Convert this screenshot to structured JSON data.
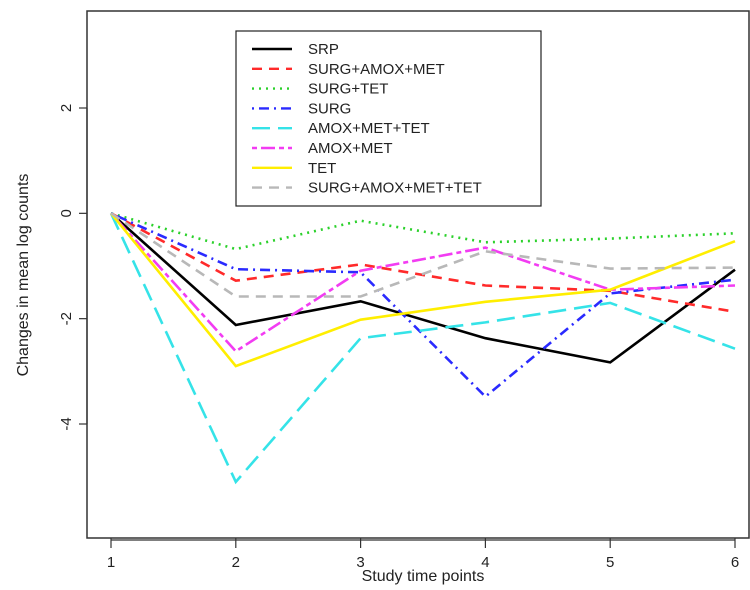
{
  "chart_data": {
    "type": "line",
    "title": "",
    "xlabel": "Study time points",
    "ylabel": "Changes in mean log counts",
    "x": [
      1,
      2,
      3,
      4,
      5,
      6
    ],
    "xlim": [
      1,
      6
    ],
    "ylim": [
      -5.3,
      3.9
    ],
    "x_ticks": [
      "1",
      "2",
      "3",
      "4",
      "5",
      "6"
    ],
    "y_ticks": [
      {
        "value": -4,
        "label": "-4"
      },
      {
        "value": -2,
        "label": "-2"
      },
      {
        "value": 0,
        "label": "0"
      },
      {
        "value": 2,
        "label": "2"
      }
    ],
    "grid": false,
    "legend": "top-center",
    "series": [
      {
        "name": "SRP",
        "color": "#000000",
        "dash": "solid",
        "values": [
          0,
          -2.12,
          -1.67,
          -2.37,
          -2.83,
          -1.07
        ]
      },
      {
        "name": "SURG+AMOX+MET",
        "color": "#ff2a2a",
        "dash": "dashed",
        "values": [
          0,
          -1.28,
          -0.97,
          -1.37,
          -1.47,
          -1.87
        ]
      },
      {
        "name": "SURG+TET",
        "color": "#2bd12b",
        "dash": "dotted",
        "values": [
          0,
          -0.68,
          -0.14,
          -0.55,
          -0.48,
          -0.38
        ]
      },
      {
        "name": "SURG",
        "color": "#2a2aff",
        "dash": "dotdash",
        "values": [
          0,
          -1.06,
          -1.12,
          -3.48,
          -1.52,
          -1.26
        ]
      },
      {
        "name": "AMOX+MET+TET",
        "color": "#35e3e8",
        "dash": "longdash",
        "values": [
          0,
          -5.1,
          -2.37,
          -2.07,
          -1.7,
          -2.57
        ]
      },
      {
        "name": "AMOX+MET",
        "color": "#f23cf2",
        "dash": "twodash",
        "values": [
          0,
          -2.62,
          -1.09,
          -0.65,
          -1.45,
          -1.37
        ]
      },
      {
        "name": "TET",
        "color": "#ffee00",
        "dash": "solid",
        "values": [
          0,
          -2.9,
          -2.02,
          -1.68,
          -1.45,
          -0.53
        ]
      },
      {
        "name": "SURG+AMOX+MET+TET",
        "color": "#b8b8b8",
        "dash": "dashed",
        "values": [
          0,
          -1.58,
          -1.58,
          -0.72,
          -1.05,
          -1.03
        ]
      }
    ]
  }
}
